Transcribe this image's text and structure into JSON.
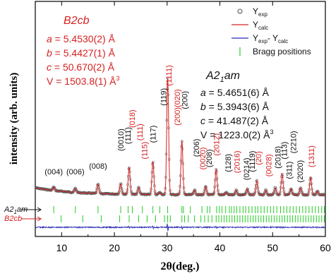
{
  "chart_data": {
    "type": "line",
    "xlabel": "2θ(deg.)",
    "ylabel": "intensity (arb. units)",
    "xlim": [
      5,
      60
    ],
    "x_ticks": [
      "10",
      "20",
      "30",
      "40",
      "50",
      "60"
    ],
    "x_tick_values": [
      10,
      20,
      30,
      40,
      50,
      60
    ],
    "colors": {
      "observed": "#505050",
      "calculated": "#d62020",
      "difference": "#2a2ab0",
      "bragg": "#22cc22",
      "phase_b2cb": "#d62020",
      "phase_a21am": "#111111"
    },
    "legend": {
      "placement": "top-right",
      "entries": [
        {
          "key": "observed",
          "marker": "circle",
          "base": "Y",
          "sub": "exp"
        },
        {
          "key": "calculated",
          "marker": "line",
          "base": "Y",
          "sub": "calc"
        },
        {
          "key": "difference",
          "marker": "line",
          "base": "Y",
          "sub": "exp",
          "mid": "- Y",
          "sub2": "calc"
        },
        {
          "key": "bragg",
          "marker": "tick",
          "text": "Bragg positions"
        }
      ]
    },
    "phases": {
      "b2cb": {
        "name": "B2cb",
        "lines": [
          {
            "var": "a",
            "text": " = 5.4530(2) Å"
          },
          {
            "var": "b",
            "text": " = 5.4427(1) Å"
          },
          {
            "var": "c",
            "text": " = 50.670(2) Å"
          },
          {
            "var": "",
            "text": "V = 1503.8(1) Å",
            "sup": "3"
          }
        ]
      },
      "a21am": {
        "name_pre": "A2",
        "name_sub": "1",
        "name_post": "am",
        "lines": [
          {
            "var": "a",
            "text": " = 5.4651(6) Å"
          },
          {
            "var": "b",
            "text": " = 5.3943(6) Å"
          },
          {
            "var": "c",
            "text": " = 41.487(2) Å"
          },
          {
            "var": "",
            "text": "V = 1223.0(2) Å",
            "sup": "3"
          }
        ]
      }
    },
    "tick_row_labels": {
      "a21am": {
        "pre": "A2",
        "sub": "1",
        "post": "am"
      },
      "b2cb": {
        "text": "B2cb"
      }
    },
    "peaks": [
      {
        "x": 8.5,
        "h": 0.03
      },
      {
        "x": 12.6,
        "h": 0.035
      },
      {
        "x": 16.9,
        "h": 0.08
      },
      {
        "x": 21.2,
        "h": 0.09
      },
      {
        "x": 22.8,
        "h": 0.23
      },
      {
        "x": 24.6,
        "h": 0.06
      },
      {
        "x": 27.3,
        "h": 0.28
      },
      {
        "x": 28.6,
        "h": 0.02
      },
      {
        "x": 30.1,
        "h": 1.0
      },
      {
        "x": 32.8,
        "h": 0.46
      },
      {
        "x": 35.2,
        "h": 0.04
      },
      {
        "x": 37.3,
        "h": 0.07
      },
      {
        "x": 39.3,
        "h": 0.22
      },
      {
        "x": 41.2,
        "h": 0.02
      },
      {
        "x": 43.1,
        "h": 0.04
      },
      {
        "x": 45.2,
        "h": 0.05
      },
      {
        "x": 47.0,
        "h": 0.12
      },
      {
        "x": 48.7,
        "h": 0.04
      },
      {
        "x": 50.5,
        "h": 0.06
      },
      {
        "x": 51.8,
        "h": 0.18
      },
      {
        "x": 53.5,
        "h": 0.05
      },
      {
        "x": 55.3,
        "h": 0.06
      },
      {
        "x": 57.2,
        "h": 0.15
      },
      {
        "x": 58.5,
        "h": 0.03
      }
    ],
    "peak_labels": [
      {
        "text": "(004)",
        "x": 8.5,
        "level": 0.2,
        "color": "black",
        "rotate": false
      },
      {
        "text": "(006)",
        "x": 12.6,
        "level": 0.2,
        "color": "black",
        "rotate": false
      },
      {
        "text": "(008)",
        "x": 16.9,
        "level": 0.25,
        "color": "black",
        "rotate": false
      },
      {
        "text": "(0010)",
        "x": 21.2,
        "level": 0.4,
        "color": "black",
        "rotate": true
      },
      {
        "text": "(111)",
        "x": 22.5,
        "level": 0.46,
        "color": "black",
        "rotate": true
      },
      {
        "text": "(018)",
        "x": 23.3,
        "level": 0.6,
        "color": "red",
        "rotate": true
      },
      {
        "text": "(111)",
        "x": 24.8,
        "level": 0.49,
        "color": "red",
        "rotate": true
      },
      {
        "text": "(115)",
        "x": 25.7,
        "level": 0.33,
        "color": "red",
        "rotate": true
      },
      {
        "text": "(117)",
        "x": 27.3,
        "level": 0.47,
        "color": "black",
        "rotate": true
      },
      {
        "text": "(119)",
        "x": 29.3,
        "level": 0.79,
        "color": "black",
        "rotate": true
      },
      {
        "text": "(1111)",
        "x": 30.3,
        "level": 0.96,
        "color": "red",
        "rotate": true
      },
      {
        "text": "(200)(020)",
        "x": 31.9,
        "level": 0.62,
        "color": "red",
        "rotate": true
      },
      {
        "text": "(200)",
        "x": 33.3,
        "level": 0.76,
        "color": "black",
        "rotate": true
      },
      {
        "text": "(206)",
        "x": 35.5,
        "level": 0.35,
        "color": "black",
        "rotate": true
      },
      {
        "text": "(0020)",
        "x": 36.7,
        "level": 0.24,
        "color": "red",
        "rotate": true
      },
      {
        "text": "(208)",
        "x": 37.9,
        "level": 0.26,
        "color": "black",
        "rotate": true
      },
      {
        "text": "(2012)",
        "x": 39.3,
        "level": 0.36,
        "color": "red",
        "rotate": true
      },
      {
        "text": "(128)",
        "x": 41.5,
        "level": 0.22,
        "color": "black",
        "rotate": true
      },
      {
        "text": "(2016)",
        "x": 43.2,
        "level": 0.21,
        "color": "red",
        "rotate": true
      },
      {
        "text": "(0214)",
        "x": 45.0,
        "level": 0.15,
        "color": "black",
        "rotate": true
      },
      {
        "text": "(1119)",
        "x": 46.1,
        "level": 0.22,
        "color": "black",
        "rotate": true
      },
      {
        "text": "(20)",
        "x": 47.3,
        "level": 0.28,
        "color": "red",
        "rotate": true
      },
      {
        "text": "(0028)",
        "x": 49.2,
        "level": 0.18,
        "color": "red",
        "rotate": true
      },
      {
        "text": "(2018)",
        "x": 51.0,
        "level": 0.25,
        "color": "black",
        "rotate": true
      },
      {
        "text": "(113)",
        "x": 52.2,
        "level": 0.33,
        "color": "black",
        "rotate": true
      },
      {
        "text": "(311)",
        "x": 53.1,
        "level": 0.16,
        "color": "black",
        "rotate": true
      },
      {
        "text": "(2210)",
        "x": 53.9,
        "level": 0.38,
        "color": "black",
        "rotate": true
      },
      {
        "text": "(2020)",
        "x": 55.2,
        "level": 0.13,
        "color": "black",
        "rotate": true
      },
      {
        "text": "(1311)",
        "x": 57.3,
        "level": 0.26,
        "color": "red",
        "rotate": true
      }
    ],
    "bragg_positions": {
      "a21am": [
        8.5,
        12.6,
        16.9,
        21.2,
        22.6,
        23.4,
        25.3,
        27.3,
        28.6,
        30.1,
        32.8,
        33.1,
        34.4,
        36.6,
        37.6,
        38.1,
        39.4,
        39.9,
        40.4,
        41.1,
        41.8,
        42.2,
        42.7,
        43.2,
        43.8,
        44.4,
        44.9,
        45.5,
        46.1,
        46.7,
        47.2,
        47.8,
        48.4,
        49.0,
        49.6,
        50.2,
        50.8,
        51.5,
        52.1,
        52.7,
        53.3,
        53.9,
        54.5,
        55.1,
        55.7,
        56.3,
        56.9,
        57.5,
        58.1,
        58.7,
        59.3,
        59.8
      ],
      "b2cb": [
        9.9,
        14.0,
        17.5,
        21.0,
        22.8,
        24.6,
        26.2,
        27.8,
        29.5,
        30.1,
        30.6,
        32.8,
        33.3,
        34.0,
        35.2,
        36.4,
        37.1,
        37.8,
        38.5,
        39.3,
        39.8,
        40.3,
        40.8,
        41.3,
        41.8,
        42.3,
        42.8,
        43.3,
        43.8,
        44.3,
        44.8,
        45.3,
        45.8,
        46.3,
        46.8,
        47.3,
        47.8,
        48.3,
        48.8,
        49.3,
        49.8,
        50.3,
        50.8,
        51.3,
        51.8,
        52.3,
        52.8,
        53.3,
        53.8,
        54.3,
        54.8,
        55.3,
        55.8,
        56.3,
        56.8,
        57.3,
        57.8,
        58.3,
        58.8,
        59.3,
        59.8
      ]
    }
  }
}
